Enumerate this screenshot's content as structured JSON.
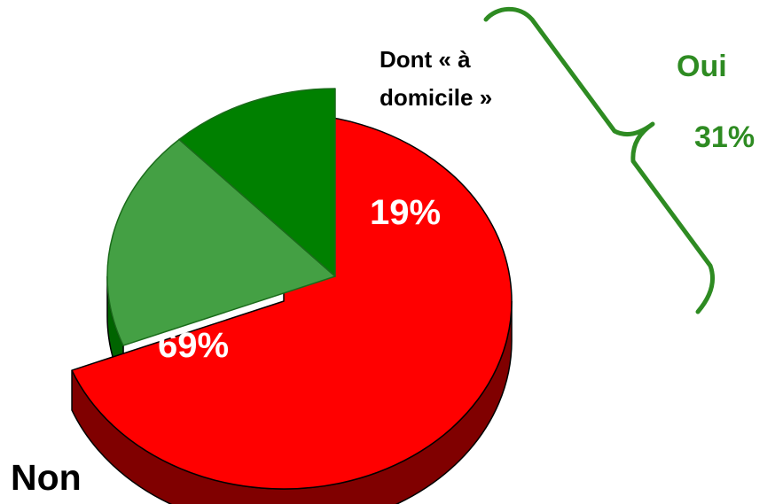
{
  "chart_data": {
    "type": "pie",
    "slices": [
      {
        "label": "Non",
        "value": 69,
        "value_label": "69%",
        "color": "#ff0000",
        "side_color": "#800000"
      },
      {
        "label": "Dont « à domicile »",
        "value": 19,
        "value_label": "19%",
        "color": "#44a044",
        "side_color": "#006400"
      },
      {
        "label": "",
        "value": 12,
        "value_label": "",
        "color": "#008000",
        "side_color": "#004d00"
      }
    ],
    "group": {
      "label": "Oui",
      "value": 31,
      "value_label": "31%",
      "color": "#228b22"
    }
  }
}
